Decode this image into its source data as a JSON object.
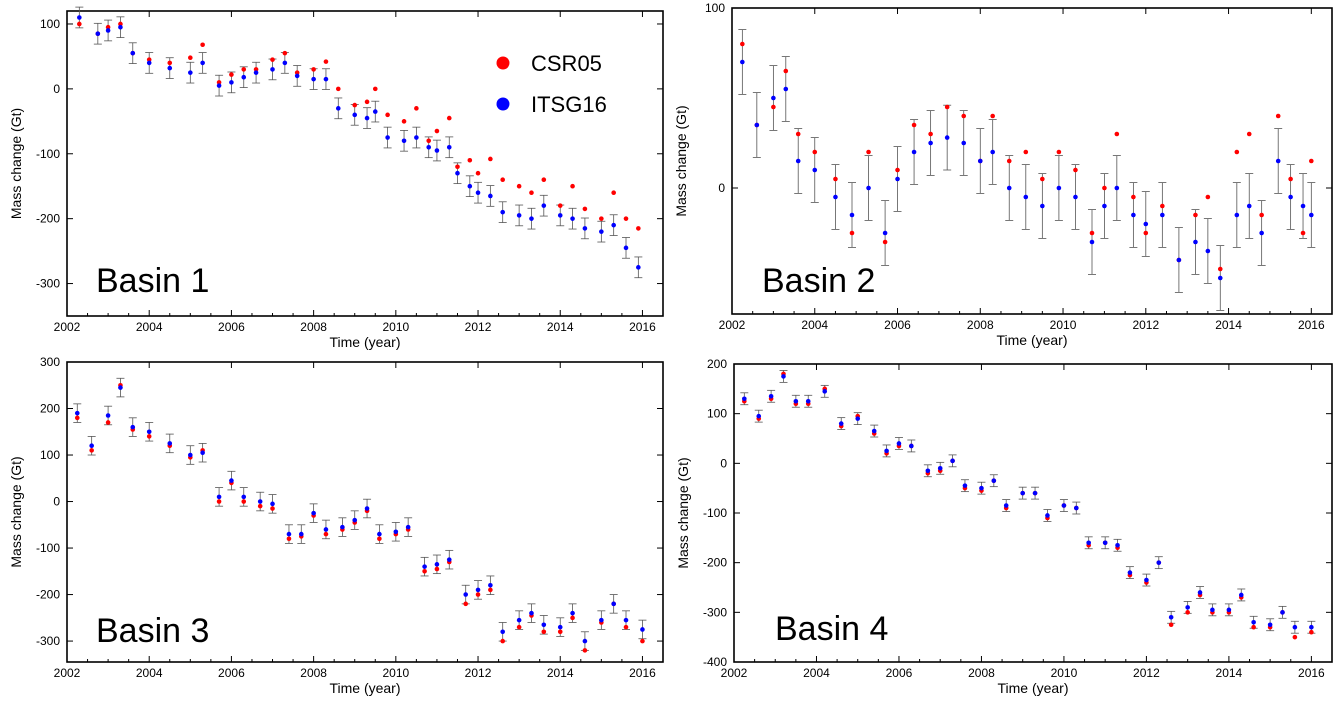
{
  "legend": [
    {
      "name": "CSR05",
      "color": "#ff0000"
    },
    {
      "name": "ITSG16",
      "color": "#0000ff"
    }
  ],
  "chart_data": [
    {
      "type": "scatter",
      "label": "Basin 1",
      "xlabel": "Time (year)",
      "ylabel": "Mass change (Gt)",
      "xlim": [
        2002,
        2016.5
      ],
      "ylim": [
        -350,
        120
      ],
      "xticks": [
        "2002",
        "2004",
        "2006",
        "2008",
        "2010",
        "2012",
        "2014",
        "2016"
      ],
      "yticks": [
        "-300",
        "-200",
        "-100",
        "0",
        "100"
      ],
      "error_bar_gt": 16,
      "series": [
        {
          "name": "CSR05",
          "color": "#ff0000",
          "x": [
            2002.3,
            2002.75,
            2003.0,
            2003.3,
            2003.6,
            2004.0,
            2004.5,
            2005.0,
            2005.3,
            2005.7,
            2006.0,
            2006.3,
            2006.6,
            2007.0,
            2007.3,
            2007.6,
            2008.0,
            2008.3,
            2008.6,
            2009.0,
            2009.3,
            2009.5,
            2009.8,
            2010.2,
            2010.5,
            2010.8,
            2011.0,
            2011.3,
            2011.5,
            2011.8,
            2012.0,
            2012.3,
            2012.6,
            2013.0,
            2013.3,
            2013.6,
            2014.0,
            2014.3,
            2014.6,
            2015.0,
            2015.3,
            2015.6,
            2015.9
          ],
          "y": [
            100,
            85,
            95,
            100,
            55,
            45,
            40,
            48,
            68,
            10,
            22,
            30,
            30,
            45,
            55,
            25,
            30,
            42,
            0,
            -25,
            -20,
            0,
            -40,
            -50,
            -30,
            -80,
            -65,
            -45,
            -120,
            -110,
            -130,
            -108,
            -140,
            -150,
            -160,
            -140,
            -180,
            -150,
            -185,
            -200,
            -160,
            -200,
            -215
          ]
        },
        {
          "name": "ITSG16",
          "color": "#0000ff",
          "x": [
            2002.3,
            2002.75,
            2003.0,
            2003.3,
            2003.6,
            2004.0,
            2004.5,
            2005.0,
            2005.3,
            2005.7,
            2006.0,
            2006.3,
            2006.6,
            2007.0,
            2007.3,
            2007.6,
            2008.0,
            2008.3,
            2008.6,
            2009.0,
            2009.3,
            2009.5,
            2009.8,
            2010.2,
            2010.5,
            2010.8,
            2011.0,
            2011.3,
            2011.5,
            2011.8,
            2012.0,
            2012.3,
            2012.6,
            2013.0,
            2013.3,
            2013.6,
            2014.0,
            2014.3,
            2014.6,
            2015.0,
            2015.3,
            2015.6,
            2015.9
          ],
          "y": [
            110,
            85,
            90,
            95,
            55,
            40,
            32,
            25,
            40,
            5,
            10,
            18,
            25,
            30,
            40,
            20,
            15,
            15,
            -30,
            -40,
            -45,
            -35,
            -75,
            -80,
            -75,
            -90,
            -95,
            -90,
            -130,
            -150,
            -160,
            -165,
            -190,
            -195,
            -200,
            -180,
            -195,
            -200,
            -215,
            -220,
            -210,
            -245,
            -275
          ]
        }
      ]
    },
    {
      "type": "scatter",
      "label": "Basin 2",
      "xlabel": "Time (year)",
      "ylabel": "Mass change (Gt)",
      "xlim": [
        2002,
        2016.5
      ],
      "ylim": [
        -70,
        100
      ],
      "xticks": [
        "2002",
        "2004",
        "2006",
        "2008",
        "2010",
        "2012",
        "2014",
        "2016"
      ],
      "yticks": [
        "0",
        "100"
      ],
      "error_bar_gt": 18,
      "series": [
        {
          "name": "CSR05",
          "color": "#ff0000",
          "x": [
            2002.25,
            2002.6,
            2003.0,
            2003.3,
            2003.6,
            2004.0,
            2004.5,
            2004.9,
            2005.3,
            2005.7,
            2006.0,
            2006.4,
            2006.8,
            2007.2,
            2007.6,
            2008.0,
            2008.3,
            2008.7,
            2009.1,
            2009.5,
            2009.9,
            2010.3,
            2010.7,
            2011.0,
            2011.3,
            2011.7,
            2012.0,
            2012.4,
            2012.8,
            2013.2,
            2013.5,
            2013.8,
            2014.2,
            2014.5,
            2014.8,
            2015.2,
            2015.5,
            2015.8,
            2016.0
          ],
          "y": [
            80,
            35,
            45,
            65,
            30,
            20,
            5,
            -25,
            20,
            -30,
            10,
            35,
            30,
            45,
            40,
            15,
            40,
            15,
            20,
            5,
            20,
            10,
            -25,
            0,
            30,
            -5,
            -25,
            -10,
            -40,
            -15,
            -5,
            -45,
            20,
            30,
            -15,
            40,
            5,
            -25,
            15
          ]
        },
        {
          "name": "ITSG16",
          "color": "#0000ff",
          "x": [
            2002.25,
            2002.6,
            2003.0,
            2003.3,
            2003.6,
            2004.0,
            2004.5,
            2004.9,
            2005.3,
            2005.7,
            2006.0,
            2006.4,
            2006.8,
            2007.2,
            2007.6,
            2008.0,
            2008.3,
            2008.7,
            2009.1,
            2009.5,
            2009.9,
            2010.3,
            2010.7,
            2011.0,
            2011.3,
            2011.7,
            2012.0,
            2012.4,
            2012.8,
            2013.2,
            2013.5,
            2013.8,
            2014.2,
            2014.5,
            2014.8,
            2015.2,
            2015.5,
            2015.8,
            2016.0
          ],
          "y": [
            70,
            35,
            50,
            55,
            15,
            10,
            -5,
            -15,
            0,
            -25,
            5,
            20,
            25,
            28,
            25,
            15,
            20,
            0,
            -5,
            -10,
            0,
            -5,
            -30,
            -10,
            0,
            -15,
            -20,
            -15,
            -40,
            -30,
            -35,
            -50,
            -15,
            -10,
            -25,
            15,
            -5,
            -10,
            -15
          ]
        }
      ]
    },
    {
      "type": "scatter",
      "label": "Basin 3",
      "xlabel": "Time (year)",
      "ylabel": "Mass change (Gt)",
      "xlim": [
        2002,
        2016.5
      ],
      "ylim": [
        -345,
        300
      ],
      "xticks": [
        "2002",
        "2004",
        "2006",
        "2008",
        "2010",
        "2012",
        "2014",
        "2016"
      ],
      "yticks": [
        "-300",
        "-200",
        "-100",
        "0",
        "100",
        "200",
        "300"
      ],
      "error_bar_gt": 20,
      "series": [
        {
          "name": "CSR05",
          "color": "#ff0000",
          "x": [
            2002.25,
            2002.6,
            2003.0,
            2003.3,
            2003.6,
            2004.0,
            2004.5,
            2005.0,
            2005.3,
            2005.7,
            2006.0,
            2006.3,
            2006.7,
            2007.0,
            2007.4,
            2007.7,
            2008.0,
            2008.3,
            2008.7,
            2009.0,
            2009.3,
            2009.6,
            2010.0,
            2010.3,
            2010.7,
            2011.0,
            2011.3,
            2011.7,
            2012.0,
            2012.3,
            2012.6,
            2013.0,
            2013.3,
            2013.6,
            2014.0,
            2014.3,
            2014.6,
            2015.0,
            2015.3,
            2015.6,
            2016.0
          ],
          "y": [
            180,
            110,
            170,
            250,
            155,
            140,
            120,
            95,
            110,
            0,
            40,
            0,
            -10,
            -15,
            -80,
            -75,
            -30,
            -70,
            -60,
            -45,
            -20,
            -80,
            -70,
            -60,
            -150,
            -145,
            -130,
            -220,
            -200,
            -190,
            -300,
            -270,
            -245,
            -280,
            -280,
            -250,
            -320,
            -260,
            -220,
            -270,
            -300
          ]
        },
        {
          "name": "ITSG16",
          "color": "#0000ff",
          "x": [
            2002.25,
            2002.6,
            2003.0,
            2003.3,
            2003.6,
            2004.0,
            2004.5,
            2005.0,
            2005.3,
            2005.7,
            2006.0,
            2006.3,
            2006.7,
            2007.0,
            2007.4,
            2007.7,
            2008.0,
            2008.3,
            2008.7,
            2009.0,
            2009.3,
            2009.6,
            2010.0,
            2010.3,
            2010.7,
            2011.0,
            2011.3,
            2011.7,
            2012.0,
            2012.3,
            2012.6,
            2013.0,
            2013.3,
            2013.6,
            2014.0,
            2014.3,
            2014.6,
            2015.0,
            2015.3,
            2015.6,
            2016.0
          ],
          "y": [
            190,
            120,
            185,
            245,
            160,
            150,
            125,
            100,
            105,
            10,
            45,
            10,
            0,
            -5,
            -70,
            -70,
            -25,
            -60,
            -55,
            -40,
            -15,
            -70,
            -65,
            -55,
            -140,
            -135,
            -125,
            -200,
            -190,
            -180,
            -280,
            -255,
            -240,
            -265,
            -270,
            -240,
            -300,
            -255,
            -220,
            -255,
            -275
          ]
        }
      ]
    },
    {
      "type": "scatter",
      "label": "Basin 4",
      "xlabel": "Time (year)",
      "ylabel": "Mass change (Gt)",
      "xlim": [
        2002,
        2016.5
      ],
      "ylim": [
        -400,
        200
      ],
      "xticks": [
        "2002",
        "2004",
        "2006",
        "2008",
        "2010",
        "2012",
        "2014",
        "2016"
      ],
      "yticks": [
        "-400",
        "-300",
        "-200",
        "-100",
        "0",
        "100",
        "200"
      ],
      "error_bar_gt": 12,
      "series": [
        {
          "name": "CSR05",
          "color": "#ff0000",
          "x": [
            2002.25,
            2002.6,
            2002.9,
            2003.2,
            2003.5,
            2003.8,
            2004.2,
            2004.6,
            2005.0,
            2005.4,
            2005.7,
            2006.0,
            2006.3,
            2006.7,
            2007.0,
            2007.3,
            2007.6,
            2008.0,
            2008.3,
            2008.6,
            2009.0,
            2009.3,
            2009.6,
            2010.0,
            2010.3,
            2010.6,
            2011.0,
            2011.3,
            2011.6,
            2012.0,
            2012.3,
            2012.6,
            2013.0,
            2013.3,
            2013.6,
            2014.0,
            2014.3,
            2014.6,
            2015.0,
            2015.3,
            2015.6,
            2016.0
          ],
          "y": [
            125,
            90,
            130,
            180,
            120,
            120,
            150,
            75,
            95,
            60,
            20,
            35,
            35,
            -20,
            -15,
            5,
            -50,
            -55,
            -35,
            -90,
            -60,
            -60,
            -110,
            -85,
            -90,
            -165,
            -160,
            -170,
            -225,
            -240,
            -200,
            -325,
            -300,
            -265,
            -300,
            -300,
            -270,
            -330,
            -330,
            -300,
            -350,
            -340
          ]
        },
        {
          "name": "ITSG16",
          "color": "#0000ff",
          "x": [
            2002.25,
            2002.6,
            2002.9,
            2003.2,
            2003.5,
            2003.8,
            2004.2,
            2004.6,
            2005.0,
            2005.4,
            2005.7,
            2006.0,
            2006.3,
            2006.7,
            2007.0,
            2007.3,
            2007.6,
            2008.0,
            2008.3,
            2008.6,
            2009.0,
            2009.3,
            2009.6,
            2010.0,
            2010.3,
            2010.6,
            2011.0,
            2011.3,
            2011.6,
            2012.0,
            2012.3,
            2012.6,
            2013.0,
            2013.3,
            2013.6,
            2014.0,
            2014.3,
            2014.6,
            2015.0,
            2015.3,
            2015.6,
            2016.0
          ],
          "y": [
            130,
            95,
            135,
            175,
            125,
            125,
            145,
            80,
            90,
            65,
            25,
            40,
            35,
            -15,
            -10,
            5,
            -45,
            -50,
            -35,
            -85,
            -60,
            -60,
            -105,
            -85,
            -90,
            -160,
            -160,
            -165,
            -220,
            -235,
            -200,
            -310,
            -290,
            -260,
            -295,
            -295,
            -265,
            -320,
            -325,
            -300,
            -330,
            -330
          ]
        }
      ]
    }
  ]
}
